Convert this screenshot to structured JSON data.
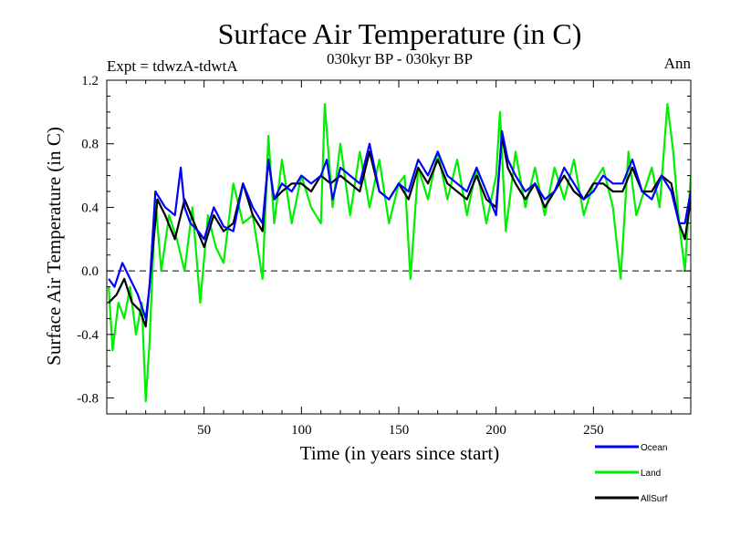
{
  "chart_data": {
    "type": "line",
    "title": "Surface Air Temperature (in C)",
    "subtitle": "030kyr BP - 030kyr BP",
    "experiment": "Expt = tdwzA-tdwtA",
    "season": "Ann",
    "xlabel": "Time (in years since start)",
    "ylabel": "Surface Air Temperature (in C)",
    "xlim": [
      0,
      300
    ],
    "ylim": [
      -0.9,
      1.2
    ],
    "xticks": [
      50,
      100,
      150,
      200,
      250
    ],
    "xtick_labels": [
      "50",
      "100",
      "150",
      "200",
      "250"
    ],
    "yticks": [
      -0.8,
      -0.4,
      0.0,
      0.4,
      0.8,
      1.2
    ],
    "ytick_labels": [
      "-0.8",
      "-0.4",
      "0.0",
      "0.4",
      "0.8",
      "1.2"
    ],
    "zero_line": "dashed",
    "legend_position": "bottom-right",
    "series": [
      {
        "name": "Ocean",
        "color": "#0000ff",
        "x": [
          1,
          4,
          8,
          12,
          16,
          20,
          22,
          25,
          30,
          35,
          38,
          40,
          43,
          47,
          50,
          55,
          60,
          65,
          70,
          75,
          80,
          83,
          86,
          90,
          95,
          100,
          105,
          110,
          113,
          116,
          120,
          125,
          130,
          135,
          140,
          145,
          150,
          155,
          160,
          165,
          170,
          175,
          180,
          185,
          190,
          195,
          200,
          203,
          206,
          210,
          215,
          220,
          225,
          230,
          235,
          240,
          245,
          250,
          255,
          260,
          265,
          270,
          275,
          280,
          285,
          290,
          294,
          297,
          300
        ],
        "values": [
          -0.05,
          -0.1,
          0.05,
          -0.05,
          -0.15,
          -0.3,
          -0.1,
          0.5,
          0.4,
          0.35,
          0.65,
          0.4,
          0.3,
          0.25,
          0.2,
          0.4,
          0.28,
          0.25,
          0.55,
          0.4,
          0.3,
          0.7,
          0.45,
          0.55,
          0.5,
          0.6,
          0.55,
          0.6,
          0.7,
          0.45,
          0.65,
          0.6,
          0.55,
          0.8,
          0.5,
          0.45,
          0.55,
          0.5,
          0.7,
          0.6,
          0.75,
          0.6,
          0.55,
          0.5,
          0.65,
          0.5,
          0.35,
          0.88,
          0.7,
          0.6,
          0.5,
          0.55,
          0.45,
          0.5,
          0.65,
          0.55,
          0.45,
          0.5,
          0.6,
          0.55,
          0.55,
          0.7,
          0.5,
          0.45,
          0.6,
          0.5,
          0.3,
          0.3,
          0.5
        ]
      },
      {
        "name": "Land",
        "color": "#00ee00",
        "x": [
          1,
          3,
          6,
          9,
          12,
          15,
          18,
          20,
          22,
          25,
          28,
          32,
          36,
          40,
          44,
          48,
          52,
          56,
          60,
          65,
          70,
          75,
          80,
          83,
          86,
          90,
          95,
          100,
          105,
          110,
          112,
          116,
          120,
          125,
          130,
          135,
          140,
          145,
          150,
          153,
          156,
          160,
          165,
          170,
          175,
          180,
          185,
          190,
          195,
          200,
          202,
          205,
          210,
          215,
          220,
          225,
          230,
          235,
          240,
          245,
          250,
          255,
          260,
          264,
          268,
          272,
          276,
          280,
          284,
          288,
          291,
          294,
          297,
          300
        ],
        "values": [
          -0.1,
          -0.5,
          -0.2,
          -0.3,
          -0.1,
          -0.4,
          -0.2,
          -0.82,
          -0.45,
          0.45,
          0.0,
          0.35,
          0.2,
          0.0,
          0.4,
          -0.2,
          0.35,
          0.15,
          0.05,
          0.55,
          0.3,
          0.35,
          -0.05,
          0.85,
          0.3,
          0.7,
          0.3,
          0.6,
          0.4,
          0.3,
          1.05,
          0.4,
          0.8,
          0.35,
          0.75,
          0.4,
          0.7,
          0.3,
          0.55,
          0.6,
          -0.05,
          0.65,
          0.45,
          0.75,
          0.45,
          0.7,
          0.35,
          0.65,
          0.3,
          0.6,
          1.0,
          0.25,
          0.75,
          0.4,
          0.65,
          0.35,
          0.65,
          0.45,
          0.7,
          0.35,
          0.55,
          0.65,
          0.4,
          -0.05,
          0.75,
          0.35,
          0.5,
          0.65,
          0.4,
          1.05,
          0.75,
          0.3,
          0.0,
          0.6
        ]
      },
      {
        "name": "AllSurf",
        "color": "#000000",
        "x": [
          1,
          5,
          9,
          13,
          17,
          20,
          23,
          26,
          30,
          35,
          40,
          45,
          50,
          55,
          60,
          65,
          70,
          75,
          80,
          83,
          86,
          90,
          95,
          100,
          105,
          110,
          115,
          120,
          125,
          130,
          135,
          140,
          145,
          150,
          155,
          160,
          165,
          170,
          175,
          180,
          185,
          190,
          195,
          200,
          203,
          206,
          210,
          215,
          220,
          225,
          230,
          235,
          240,
          245,
          250,
          255,
          260,
          265,
          270,
          275,
          280,
          285,
          290,
          294,
          297,
          300
        ],
        "values": [
          -0.2,
          -0.15,
          -0.05,
          -0.2,
          -0.25,
          -0.35,
          0.05,
          0.45,
          0.35,
          0.2,
          0.45,
          0.3,
          0.15,
          0.35,
          0.25,
          0.3,
          0.55,
          0.35,
          0.25,
          0.7,
          0.45,
          0.5,
          0.55,
          0.55,
          0.5,
          0.6,
          0.55,
          0.6,
          0.55,
          0.5,
          0.75,
          0.5,
          0.45,
          0.55,
          0.45,
          0.65,
          0.55,
          0.7,
          0.55,
          0.5,
          0.45,
          0.6,
          0.45,
          0.4,
          0.85,
          0.65,
          0.55,
          0.45,
          0.55,
          0.4,
          0.5,
          0.6,
          0.5,
          0.45,
          0.55,
          0.55,
          0.5,
          0.5,
          0.65,
          0.5,
          0.5,
          0.6,
          0.55,
          0.3,
          0.2,
          0.45
        ]
      }
    ]
  }
}
